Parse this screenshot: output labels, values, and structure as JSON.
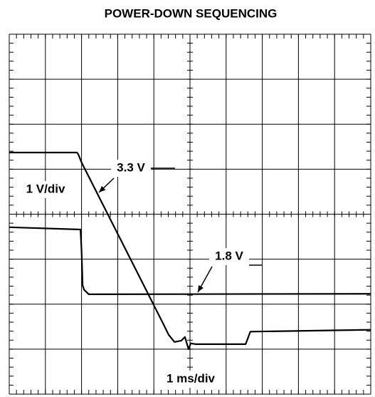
{
  "chart_data": {
    "type": "line",
    "title": "POWER-DOWN SEQUENCING",
    "annotations": [
      "3.3 V",
      "1 V/div",
      "1.8 V",
      "1 ms/div"
    ],
    "xlim": [
      0,
      10
    ],
    "ylim": [
      0,
      8
    ],
    "xticks": [
      0,
      1,
      2,
      3,
      4,
      5,
      6,
      7,
      8,
      9,
      10
    ],
    "yticks": [
      0,
      1,
      2,
      3,
      4,
      5,
      6,
      7,
      8
    ],
    "grid": true,
    "series": [
      {
        "color": "#000000",
        "x": [
          0,
          1.87,
          1.91,
          2.0,
          4.27,
          4.41,
          4.57,
          4.76,
          4.86,
          4.96,
          5.02,
          5.16,
          6.54,
          6.67,
          10
        ],
        "values": [
          5.37,
          5.37,
          5.33,
          5.15,
          1.55,
          1.32,
          1.16,
          1.19,
          1.27,
          1.0,
          1.13,
          1.11,
          1.11,
          1.39,
          1.43
        ]
      },
      {
        "color": "#000000",
        "x": [
          0,
          1.97,
          2.0,
          2.03,
          2.07,
          2.2,
          10
        ],
        "values": [
          3.71,
          3.66,
          3.2,
          2.42,
          2.32,
          2.22,
          2.23
        ]
      }
    ]
  }
}
